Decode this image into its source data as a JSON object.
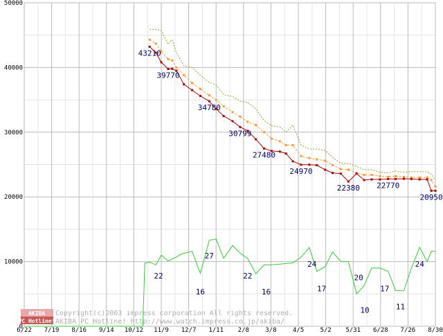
{
  "chart_data": {
    "type": "line",
    "title": "",
    "xlabel": "",
    "ylabel": "",
    "ylim": [
      0,
      50000
    ],
    "y_ticks": [
      {
        "value": 0,
        "label": "0"
      },
      {
        "value": 10000,
        "label": "10000"
      },
      {
        "value": 20000,
        "label": "20000"
      },
      {
        "value": 30000,
        "label": "30000"
      },
      {
        "value": 40000,
        "label": "40000"
      },
      {
        "value": 50000,
        "label": "50000"
      }
    ],
    "x_range": [
      0,
      60
    ],
    "x_ticks": [
      {
        "x": 0,
        "label": "6/22"
      },
      {
        "x": 4,
        "label": "7/19"
      },
      {
        "x": 8,
        "label": "8/16"
      },
      {
        "x": 12,
        "label": "9/14"
      },
      {
        "x": 16,
        "label": "10/12"
      },
      {
        "x": 20,
        "label": "11/9"
      },
      {
        "x": 24,
        "label": "12/7"
      },
      {
        "x": 28,
        "label": "1/11"
      },
      {
        "x": 32,
        "label": "2/8"
      },
      {
        "x": 36,
        "label": "3/8"
      },
      {
        "x": 40,
        "label": "4/5"
      },
      {
        "x": 44,
        "label": "5/2"
      },
      {
        "x": 48,
        "label": "5/31"
      },
      {
        "x": 52,
        "label": "6/28"
      },
      {
        "x": 56,
        "label": "7/26"
      },
      {
        "x": 60,
        "label": "8/30"
      }
    ],
    "grid": true,
    "series": [
      {
        "name": "max_price",
        "color": "#999933",
        "style": "dotted",
        "x": [
          18.3,
          19.2,
          20,
          21,
          21.6,
          22.2,
          23.3,
          24.5,
          25.7,
          27,
          28,
          29.1,
          30.4,
          31.5,
          32.6,
          33.8,
          35,
          36.1,
          37.3,
          38.2,
          39.2,
          40.4,
          41.6,
          42.7,
          43.9,
          45,
          46.2,
          47.3,
          48.5,
          49.6,
          50.7,
          51.9,
          53.1,
          54.2,
          55.4,
          56.5,
          57.7,
          58.8,
          59.4,
          60
        ],
        "y": [
          45900,
          45900,
          45700,
          43600,
          44300,
          42300,
          40300,
          40000,
          38800,
          37700,
          37300,
          35800,
          35500,
          34800,
          34600,
          33600,
          31800,
          31000,
          30800,
          30000,
          31100,
          28000,
          27400,
          27400,
          27200,
          26100,
          25200,
          25200,
          24700,
          24200,
          24200,
          23800,
          23700,
          24000,
          23800,
          23900,
          23900,
          23900,
          23500,
          22600
        ]
      },
      {
        "name": "avg_price",
        "color": "#ff9933",
        "style": "dashed-markers",
        "x": [
          18.3,
          19.2,
          20,
          21,
          21.6,
          22.2,
          23.3,
          24.5,
          25.7,
          27,
          28,
          29.1,
          30.4,
          31.5,
          32.6,
          33.8,
          35,
          36.1,
          37.3,
          38.2,
          39.2,
          40.4,
          41.6,
          42.7,
          43.9,
          45,
          46.2,
          47.3,
          48.5,
          49.6,
          50.7,
          51.9,
          53.1,
          54.2,
          55.4,
          56.5,
          57.7,
          58.8,
          59.4,
          60
        ],
        "y": [
          44300,
          43700,
          42500,
          41300,
          41100,
          40000,
          38800,
          37600,
          36700,
          35700,
          35000,
          34000,
          33100,
          32400,
          31600,
          31100,
          30000,
          29000,
          28600,
          28000,
          28000,
          26300,
          26000,
          25800,
          25600,
          24900,
          24300,
          24200,
          23700,
          23400,
          23400,
          23200,
          23100,
          23200,
          23100,
          23000,
          23000,
          23000,
          22600,
          21600
        ]
      },
      {
        "name": "min_price",
        "color": "#aa0000",
        "style": "solid-markers",
        "x": [
          18.3,
          19.2,
          20,
          21,
          21.6,
          22.2,
          23.3,
          24.5,
          25.7,
          27,
          28,
          29.1,
          30.4,
          31.5,
          32.6,
          33.8,
          35,
          36.1,
          37.3,
          38.2,
          39.2,
          40.4,
          41.6,
          42.7,
          43.9,
          45,
          46.2,
          47.3,
          48.5,
          49.6,
          50.7,
          51.9,
          53.1,
          54.2,
          55.4,
          56.5,
          57.7,
          58.8,
          59.4,
          60
        ],
        "y": [
          43210,
          42300,
          40800,
          39770,
          39800,
          39500,
          37400,
          36500,
          35600,
          34780,
          33600,
          32500,
          31700,
          30799,
          30200,
          28900,
          27480,
          27100,
          27000,
          26700,
          25500,
          24970,
          24970,
          24900,
          24200,
          23700,
          23600,
          22380,
          23600,
          22600,
          22700,
          22700,
          22770,
          22770,
          22800,
          22770,
          22700,
          22700,
          20950,
          20950
        ]
      },
      {
        "name": "shop_count",
        "color": "#33cc33",
        "style": "solid",
        "x": [
          0,
          17.3,
          17.6,
          18.3,
          19.2,
          20,
          21,
          22,
          23,
          24.5,
          25.7,
          27,
          28,
          29.1,
          30.4,
          31.5,
          32.6,
          33.8,
          35,
          36.1,
          37.3,
          38.2,
          39.2,
          40.4,
          41.6,
          42.7,
          43.9,
          45,
          46.2,
          47.3,
          48.5,
          49.6,
          50.7,
          51.9,
          53.1,
          54.2,
          55.4,
          56.5,
          57.7,
          58.8,
          59.4,
          60
        ],
        "y": [
          0,
          0,
          9800,
          9900,
          9500,
          11000,
          10100,
          10600,
          11200,
          11600,
          8200,
          13300,
          13500,
          10500,
          12500,
          11300,
          10500,
          8100,
          9500,
          9500,
          9600,
          9700,
          9800,
          10700,
          12200,
          8500,
          9200,
          11500,
          10000,
          10000,
          5000,
          6300,
          9000,
          9000,
          8500,
          5500,
          5500,
          9000,
          12200,
          10000,
          11600,
          11600
        ]
      }
    ],
    "annotations": [
      {
        "text": "43210",
        "x": 18.3,
        "y": 43210,
        "color": "#000066"
      },
      {
        "text": "39770",
        "x": 21,
        "y": 39770,
        "color": "#000066"
      },
      {
        "text": "34780",
        "x": 27,
        "y": 34780,
        "color": "#000066"
      },
      {
        "text": "30799",
        "x": 31.5,
        "y": 30799,
        "color": "#000066"
      },
      {
        "text": "27480",
        "x": 35,
        "y": 27480,
        "color": "#000066"
      },
      {
        "text": "24970",
        "x": 40.4,
        "y": 24970,
        "color": "#000066"
      },
      {
        "text": "22380",
        "x": 47.3,
        "y": 22380,
        "color": "#000066"
      },
      {
        "text": "22770",
        "x": 53.1,
        "y": 22770,
        "color": "#000066"
      },
      {
        "text": "20950",
        "x": 59.4,
        "y": 20950,
        "color": "#000066"
      },
      {
        "text": "22",
        "x": 19.6,
        "y": 8800,
        "color": "#000066"
      },
      {
        "text": "16",
        "x": 25.7,
        "y": 6300,
        "color": "#000066"
      },
      {
        "text": "27",
        "x": 27,
        "y": 11900,
        "color": "#000066"
      },
      {
        "text": "22",
        "x": 32.6,
        "y": 8800,
        "color": "#000066"
      },
      {
        "text": "16",
        "x": 35.3,
        "y": 6300,
        "color": "#000066"
      },
      {
        "text": "24",
        "x": 42,
        "y": 10600,
        "color": "#000066"
      },
      {
        "text": "17",
        "x": 43.4,
        "y": 6800,
        "color": "#000066"
      },
      {
        "text": "20",
        "x": 48.8,
        "y": 8500,
        "color": "#000066"
      },
      {
        "text": "10",
        "x": 49.7,
        "y": 3500,
        "color": "#000066"
      },
      {
        "text": "17",
        "x": 52.6,
        "y": 6800,
        "color": "#000066"
      },
      {
        "text": "11",
        "x": 54.9,
        "y": 4000,
        "color": "#000066"
      },
      {
        "text": "24",
        "x": 57.7,
        "y": 10600,
        "color": "#000066"
      }
    ],
    "copyright_line1": "Copyright(c)2003 impress corporation All rights reserved.",
    "copyright_line2": "AKIBA PC Hotline!  http://www.watch.impress.co.jp/akiba/",
    "logo_top": "AKIBA",
    "logo_bottom": "PC Hotline!"
  }
}
